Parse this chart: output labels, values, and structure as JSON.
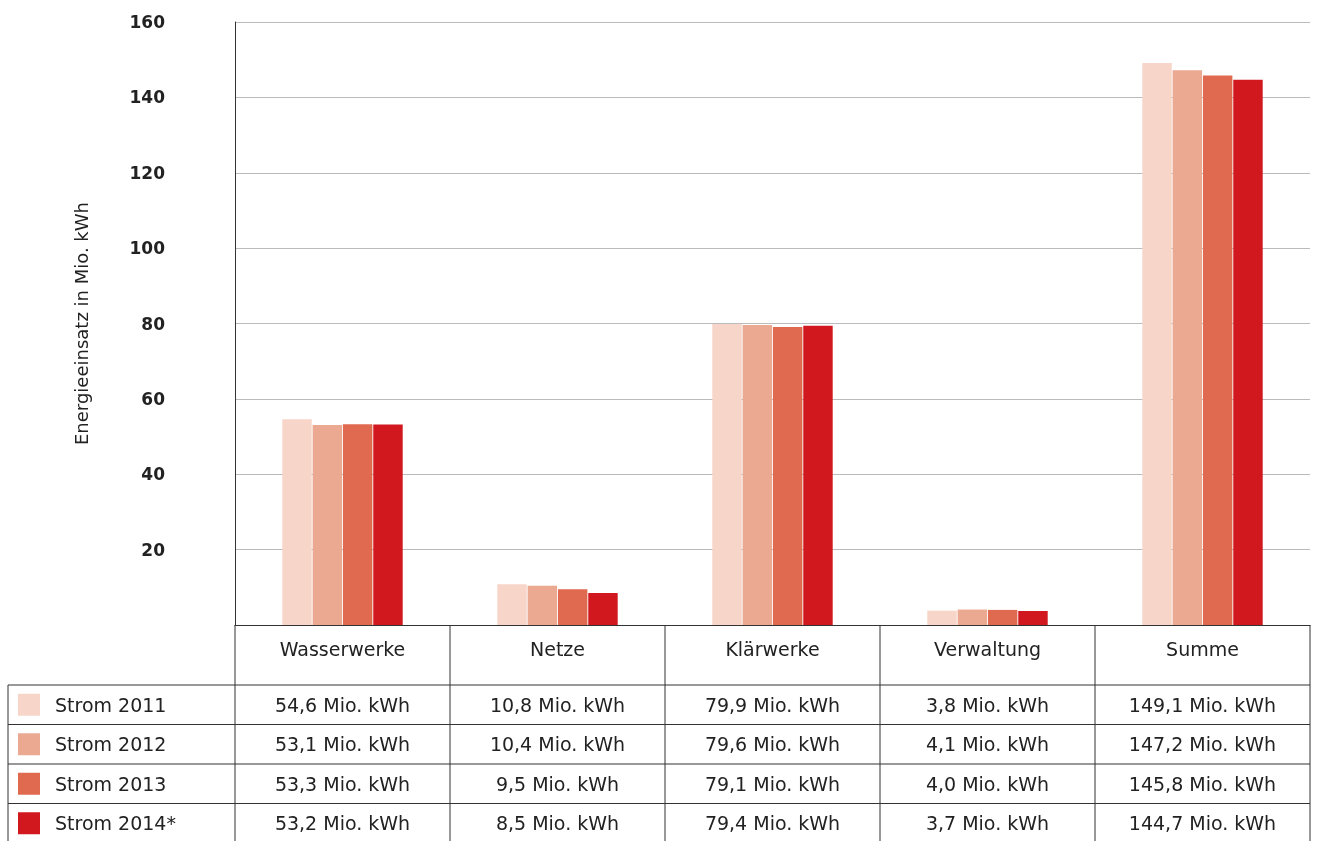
{
  "chart_data": {
    "type": "bar",
    "ylabel": "Energieeinsatz in Mio. kWh",
    "categories": [
      "Wasserwerke",
      "Netze",
      "Klärwerke",
      "Verwaltung",
      "Summe"
    ],
    "series": [
      {
        "name": "Strom 2011",
        "color": "#f7d5c8",
        "values": [
          54.6,
          10.8,
          79.9,
          3.8,
          149.1
        ],
        "value_labels": [
          "54,6 Mio. kWh",
          "10,8 Mio. kWh",
          "79,9 Mio. kWh",
          "3,8 Mio. kWh",
          "149,1 Mio. kWh"
        ]
      },
      {
        "name": "Strom 2012",
        "color": "#eaa990",
        "values": [
          53.1,
          10.4,
          79.6,
          4.1,
          147.2
        ],
        "value_labels": [
          "53,1 Mio. kWh",
          "10,4 Mio. kWh",
          "79,6 Mio. kWh",
          "4,1 Mio. kWh",
          "147,2 Mio. kWh"
        ]
      },
      {
        "name": "Strom 2013",
        "color": "#e06a50",
        "values": [
          53.3,
          9.5,
          79.1,
          4.0,
          145.8
        ],
        "value_labels": [
          "53,3 Mio. kWh",
          "9,5 Mio. kWh",
          "79,1 Mio. kWh",
          "4,0 Mio. kWh",
          "145,8 Mio. kWh"
        ]
      },
      {
        "name": "Strom 2014*",
        "color": "#d0181e",
        "values": [
          53.2,
          8.5,
          79.4,
          3.7,
          144.7
        ],
        "value_labels": [
          "53,2 Mio. kWh",
          "8,5 Mio. kWh",
          "79,4 Mio. kWh",
          "3,7 Mio. kWh",
          "144,7 Mio. kWh"
        ]
      }
    ],
    "ylim": [
      0,
      160
    ],
    "yticks": [
      {
        "value": 0,
        "label": null
      },
      20,
      40,
      60,
      80,
      100,
      120,
      140,
      160
    ],
    "grid": "y",
    "legend": "bottom"
  }
}
